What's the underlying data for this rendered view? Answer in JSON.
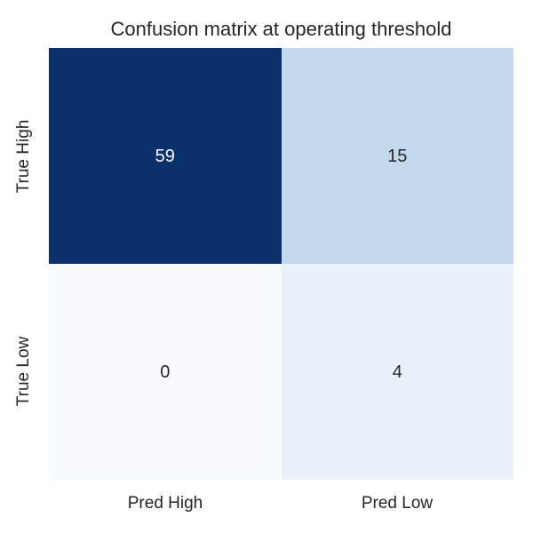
{
  "title": "Confusion matrix at operating threshold",
  "colors": {
    "background": "#ffffff",
    "text": "#262626",
    "colormap_low": "#f7fbff",
    "colormap_high": "#0a316b"
  },
  "chart_data": {
    "type": "heatmap",
    "title": "Confusion matrix at operating threshold",
    "xlabel": "",
    "ylabel": "",
    "x_categories": [
      "Pred High",
      "Pred Low"
    ],
    "y_categories": [
      "True High",
      "True Low"
    ],
    "values": [
      [
        59,
        15
      ],
      [
        0,
        4
      ]
    ],
    "colormap": "Blues",
    "value_range": [
      0,
      59
    ],
    "grid": false,
    "legend_position": "none",
    "cells": [
      {
        "row": "True High",
        "col": "Pred High",
        "value": "59",
        "bg": "#0a316b",
        "fg": "#ffffff"
      },
      {
        "row": "True High",
        "col": "Pred Low",
        "value": "15",
        "bg": "#c3daee",
        "fg": "#262626"
      },
      {
        "row": "True Low",
        "col": "Pred High",
        "value": "0",
        "bg": "#f7fbff",
        "fg": "#262626"
      },
      {
        "row": "True Low",
        "col": "Pred Low",
        "value": "4",
        "bg": "#e9f1fa",
        "fg": "#262626"
      }
    ],
    "xtick_labels": {
      "col0": "Pred High",
      "col1": "Pred Low"
    },
    "ytick_labels": {
      "row0": "True High",
      "row1": "True Low"
    }
  }
}
